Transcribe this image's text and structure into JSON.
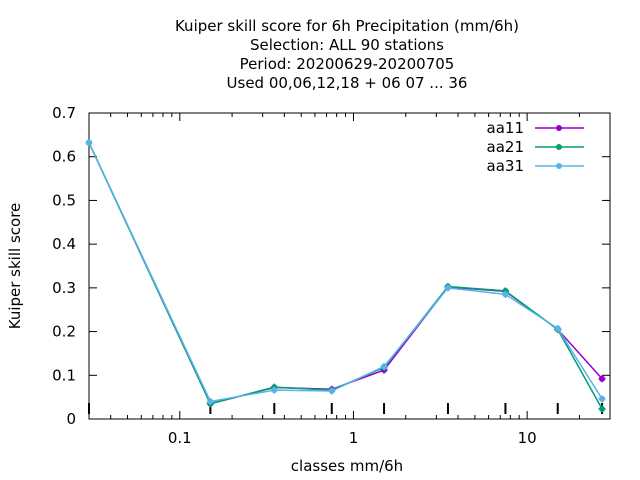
{
  "chart_data": {
    "type": "line",
    "title_lines": [
      "Kuiper skill score  for 6h Precipitation (mm/6h)",
      "Selection: ALL     90 stations",
      "Period: 20200629-20200705",
      "Used  00,06,12,18 + 06 07 ... 36"
    ],
    "xlabel": "classes mm/6h",
    "ylabel": "Kuiper skill score",
    "x_scale": "log",
    "xlim": [
      0.03,
      30
    ],
    "ylim": [
      0,
      0.7
    ],
    "x_ticks": [
      {
        "value": 0.1,
        "label": "0.1"
      },
      {
        "value": 1,
        "label": "1"
      },
      {
        "value": 10,
        "label": "10"
      }
    ],
    "y_ticks": [
      {
        "value": 0,
        "label": "0"
      },
      {
        "value": 0.1,
        "label": "0.1"
      },
      {
        "value": 0.2,
        "label": "0.2"
      },
      {
        "value": 0.3,
        "label": "0.3"
      },
      {
        "value": 0.4,
        "label": "0.4"
      },
      {
        "value": 0.5,
        "label": "0.5"
      },
      {
        "value": 0.6,
        "label": "0.6"
      },
      {
        "value": 0.7,
        "label": "0.7"
      }
    ],
    "x": [
      0.03,
      0.15,
      0.35,
      0.75,
      1.5,
      3.5,
      7.5,
      15,
      27
    ],
    "grid": false,
    "legend_position": "top-right",
    "series": [
      {
        "name": "aa11",
        "color": "#9400d3",
        "values": [
          0.632,
          0.035,
          0.072,
          0.068,
          0.112,
          0.302,
          0.292,
          0.205,
          0.092
        ]
      },
      {
        "name": "aa21",
        "color": "#009e73",
        "values": [
          0.632,
          0.035,
          0.073,
          0.066,
          0.118,
          0.303,
          0.293,
          0.205,
          0.023
        ]
      },
      {
        "name": "aa31",
        "color": "#56b4e9",
        "values": [
          0.632,
          0.04,
          0.066,
          0.064,
          0.12,
          0.3,
          0.285,
          0.207,
          0.046
        ]
      }
    ]
  }
}
